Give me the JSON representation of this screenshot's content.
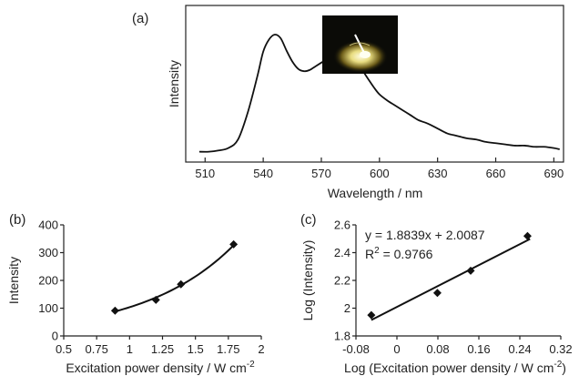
{
  "chart_data": [
    {
      "type": "line",
      "panel_label": "(a)",
      "xlabel": "Wavelength / nm",
      "ylabel": "Intensity",
      "xlim": [
        500,
        695
      ],
      "ylim": [
        0,
        1
      ],
      "x_ticks": [
        510,
        540,
        570,
        600,
        630,
        660,
        690
      ],
      "y_ticks_shown": false,
      "grid": false,
      "inset": "photograph of glowing sample",
      "series": [
        {
          "x": [
            507,
            512,
            517,
            522,
            527,
            532,
            537,
            540,
            543,
            546,
            549,
            552,
            555,
            558,
            561,
            564,
            567,
            570,
            573,
            576,
            579,
            582,
            585,
            588,
            591,
            594,
            597,
            600,
            604,
            608,
            612,
            616,
            620,
            625,
            630,
            635,
            640,
            645,
            650,
            655,
            660,
            665,
            670,
            675,
            680,
            685,
            690,
            693
          ],
          "y": [
            0.04,
            0.04,
            0.05,
            0.07,
            0.14,
            0.36,
            0.66,
            0.86,
            0.96,
            1.0,
            0.97,
            0.87,
            0.78,
            0.72,
            0.7,
            0.71,
            0.74,
            0.77,
            0.8,
            0.82,
            0.83,
            0.82,
            0.8,
            0.76,
            0.71,
            0.64,
            0.57,
            0.51,
            0.46,
            0.42,
            0.38,
            0.34,
            0.3,
            0.27,
            0.23,
            0.19,
            0.17,
            0.15,
            0.14,
            0.12,
            0.11,
            0.1,
            0.09,
            0.09,
            0.08,
            0.08,
            0.07,
            0.06
          ]
        }
      ]
    },
    {
      "type": "scatter",
      "panel_label": "(b)",
      "xlabel": "Excitation power density / W cm",
      "xlabel_sup": "-2",
      "ylabel": "Intensity",
      "xlim": [
        0.5,
        2
      ],
      "ylim": [
        0,
        400
      ],
      "x_ticks": [
        "0.5",
        "0.75",
        "1",
        "1.25",
        "1.5",
        "1.75",
        "2"
      ],
      "y_ticks": [
        "0",
        "100",
        "200",
        "300",
        "400"
      ],
      "grid": false,
      "series": [
        {
          "x": [
            0.89,
            1.2,
            1.39,
            1.79
          ],
          "y": [
            91,
            130,
            186,
            330
          ],
          "marker": "diamond",
          "fit": "curve"
        }
      ]
    },
    {
      "type": "scatter",
      "panel_label": "(c)",
      "xlabel": "Log (Excitation power density / W cm",
      "xlabel_sup": "-2",
      "xlabel_end": ")",
      "ylabel": "Log (Intensity)",
      "xlim": [
        -0.08,
        0.32
      ],
      "ylim": [
        1.8,
        2.6
      ],
      "x_ticks": [
        "-0.08",
        "0",
        "0.08",
        "0.16",
        "0.24",
        "0.32"
      ],
      "y_ticks": [
        "1.8",
        "2",
        "2.2",
        "2.4",
        "2.6"
      ],
      "grid": false,
      "annotation_line1": "y = 1.8839x + 2.0087",
      "annotation_r_prefix": "R",
      "annotation_r_sup": "2",
      "annotation_r_value": " = 0.9766",
      "fit": {
        "slope": 1.8839,
        "intercept": 2.0087,
        "x_range": [
          -0.05,
          0.26
        ]
      },
      "series": [
        {
          "x": [
            -0.05,
            0.079,
            0.144,
            0.255
          ],
          "y": [
            1.95,
            2.11,
            2.27,
            2.52
          ],
          "marker": "diamond"
        }
      ]
    }
  ]
}
